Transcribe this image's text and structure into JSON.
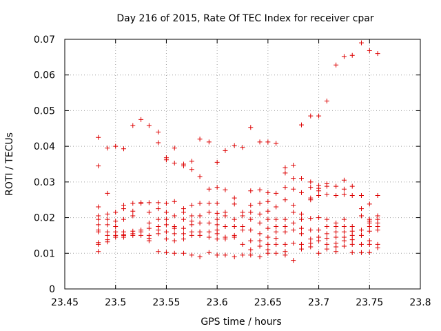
{
  "chart_data": {
    "type": "scatter",
    "title": "Day 216 of 2015, Rate Of TEC Index for receiver cpar",
    "xlabel": "GPS time / hours",
    "ylabel": "ROTI / TECUs",
    "xlim": [
      23.45,
      23.8
    ],
    "ylim": [
      0,
      0.07
    ],
    "xticks": [
      "23.45",
      "23.5",
      "23.55",
      "23.6",
      "23.65",
      "23.7",
      "23.75",
      "23.8"
    ],
    "yticks": [
      "0",
      "0.01",
      "0.02",
      "0.03",
      "0.04",
      "0.05",
      "0.06",
      "0.07"
    ],
    "grid": true,
    "marker": "+",
    "color": "#dd0000",
    "series": [
      {
        "name": "ROTI",
        "points": [
          [
            23.483,
            0.0425
          ],
          [
            23.483,
            0.0345
          ],
          [
            23.483,
            0.023
          ],
          [
            23.483,
            0.0205
          ],
          [
            23.483,
            0.0195
          ],
          [
            23.483,
            0.018
          ],
          [
            23.483,
            0.0165
          ],
          [
            23.483,
            0.016
          ],
          [
            23.483,
            0.013
          ],
          [
            23.483,
            0.0125
          ],
          [
            23.483,
            0.0105
          ],
          [
            23.492,
            0.0395
          ],
          [
            23.492,
            0.0268
          ],
          [
            23.492,
            0.021
          ],
          [
            23.492,
            0.0195
          ],
          [
            23.492,
            0.018
          ],
          [
            23.492,
            0.016
          ],
          [
            23.492,
            0.015
          ],
          [
            23.492,
            0.0138
          ],
          [
            23.492,
            0.0132
          ],
          [
            23.5,
            0.04
          ],
          [
            23.5,
            0.0215
          ],
          [
            23.5,
            0.019
          ],
          [
            23.5,
            0.0175
          ],
          [
            23.5,
            0.016
          ],
          [
            23.5,
            0.015
          ],
          [
            23.5,
            0.0145
          ],
          [
            23.508,
            0.0393
          ],
          [
            23.508,
            0.0235
          ],
          [
            23.508,
            0.0225
          ],
          [
            23.508,
            0.0195
          ],
          [
            23.508,
            0.016
          ],
          [
            23.508,
            0.0152
          ],
          [
            23.508,
            0.015
          ],
          [
            23.508,
            0.0145
          ],
          [
            23.517,
            0.0458
          ],
          [
            23.517,
            0.024
          ],
          [
            23.517,
            0.0218
          ],
          [
            23.517,
            0.0205
          ],
          [
            23.517,
            0.0162
          ],
          [
            23.517,
            0.0155
          ],
          [
            23.517,
            0.015
          ],
          [
            23.525,
            0.0475
          ],
          [
            23.525,
            0.0242
          ],
          [
            23.525,
            0.024
          ],
          [
            23.525,
            0.0165
          ],
          [
            23.525,
            0.016
          ],
          [
            23.525,
            0.015
          ],
          [
            23.533,
            0.0458
          ],
          [
            23.533,
            0.0242
          ],
          [
            23.533,
            0.0215
          ],
          [
            23.533,
            0.0185
          ],
          [
            23.533,
            0.017
          ],
          [
            23.533,
            0.015
          ],
          [
            23.533,
            0.0142
          ],
          [
            23.533,
            0.0135
          ],
          [
            23.542,
            0.044
          ],
          [
            23.542,
            0.041
          ],
          [
            23.542,
            0.0242
          ],
          [
            23.542,
            0.0225
          ],
          [
            23.542,
            0.0195
          ],
          [
            23.542,
            0.0175
          ],
          [
            23.542,
            0.0165
          ],
          [
            23.542,
            0.0155
          ],
          [
            23.542,
            0.0105
          ],
          [
            23.55,
            0.0368
          ],
          [
            23.55,
            0.0362
          ],
          [
            23.55,
            0.024
          ],
          [
            23.55,
            0.0215
          ],
          [
            23.55,
            0.0195
          ],
          [
            23.55,
            0.018
          ],
          [
            23.55,
            0.016
          ],
          [
            23.55,
            0.014
          ],
          [
            23.55,
            0.0102
          ],
          [
            23.558,
            0.0395
          ],
          [
            23.558,
            0.0353
          ],
          [
            23.558,
            0.0245
          ],
          [
            23.558,
            0.0205
          ],
          [
            23.558,
            0.0175
          ],
          [
            23.558,
            0.017
          ],
          [
            23.558,
            0.0155
          ],
          [
            23.558,
            0.0135
          ],
          [
            23.558,
            0.01
          ],
          [
            23.567,
            0.035
          ],
          [
            23.567,
            0.0345
          ],
          [
            23.567,
            0.0225
          ],
          [
            23.567,
            0.0215
          ],
          [
            23.567,
            0.0195
          ],
          [
            23.567,
            0.017
          ],
          [
            23.567,
            0.0155
          ],
          [
            23.567,
            0.014
          ],
          [
            23.567,
            0.01
          ],
          [
            23.575,
            0.0358
          ],
          [
            23.575,
            0.0335
          ],
          [
            23.575,
            0.0235
          ],
          [
            23.575,
            0.0205
          ],
          [
            23.575,
            0.019
          ],
          [
            23.575,
            0.018
          ],
          [
            23.575,
            0.016
          ],
          [
            23.575,
            0.015
          ],
          [
            23.575,
            0.0095
          ],
          [
            23.583,
            0.042
          ],
          [
            23.583,
            0.0315
          ],
          [
            23.583,
            0.024
          ],
          [
            23.583,
            0.0205
          ],
          [
            23.583,
            0.0185
          ],
          [
            23.583,
            0.016
          ],
          [
            23.583,
            0.015
          ],
          [
            23.583,
            0.009
          ],
          [
            23.592,
            0.0412
          ],
          [
            23.592,
            0.028
          ],
          [
            23.592,
            0.024
          ],
          [
            23.592,
            0.0215
          ],
          [
            23.592,
            0.0185
          ],
          [
            23.592,
            0.016
          ],
          [
            23.592,
            0.0145
          ],
          [
            23.592,
            0.0102
          ],
          [
            23.6,
            0.0355
          ],
          [
            23.6,
            0.0285
          ],
          [
            23.6,
            0.024
          ],
          [
            23.6,
            0.0212
          ],
          [
            23.6,
            0.0195
          ],
          [
            23.6,
            0.018
          ],
          [
            23.6,
            0.0165
          ],
          [
            23.6,
            0.0155
          ],
          [
            23.6,
            0.014
          ],
          [
            23.6,
            0.0095
          ],
          [
            23.608,
            0.0388
          ],
          [
            23.608,
            0.0278
          ],
          [
            23.608,
            0.0215
          ],
          [
            23.608,
            0.0205
          ],
          [
            23.608,
            0.0175
          ],
          [
            23.608,
            0.0145
          ],
          [
            23.608,
            0.014
          ],
          [
            23.608,
            0.0095
          ],
          [
            23.617,
            0.0402
          ],
          [
            23.617,
            0.0255
          ],
          [
            23.617,
            0.0238
          ],
          [
            23.617,
            0.0195
          ],
          [
            23.617,
            0.0175
          ],
          [
            23.617,
            0.015
          ],
          [
            23.617,
            0.0145
          ],
          [
            23.617,
            0.009
          ],
          [
            23.625,
            0.0397
          ],
          [
            23.625,
            0.0215
          ],
          [
            23.625,
            0.0205
          ],
          [
            23.625,
            0.0175
          ],
          [
            23.625,
            0.0165
          ],
          [
            23.625,
            0.0125
          ],
          [
            23.625,
            0.0095
          ],
          [
            23.633,
            0.0453
          ],
          [
            23.633,
            0.0275
          ],
          [
            23.633,
            0.0235
          ],
          [
            23.633,
            0.0215
          ],
          [
            23.633,
            0.0195
          ],
          [
            23.633,
            0.0165
          ],
          [
            23.633,
            0.0135
          ],
          [
            23.633,
            0.011
          ],
          [
            23.633,
            0.0095
          ],
          [
            23.642,
            0.0412
          ],
          [
            23.642,
            0.0278
          ],
          [
            23.642,
            0.024
          ],
          [
            23.642,
            0.021
          ],
          [
            23.642,
            0.0185
          ],
          [
            23.642,
            0.0155
          ],
          [
            23.642,
            0.0135
          ],
          [
            23.642,
            0.012
          ],
          [
            23.642,
            0.009
          ],
          [
            23.65,
            0.0412
          ],
          [
            23.65,
            0.027
          ],
          [
            23.65,
            0.0245
          ],
          [
            23.65,
            0.0218
          ],
          [
            23.65,
            0.0195
          ],
          [
            23.65,
            0.017
          ],
          [
            23.65,
            0.0145
          ],
          [
            23.65,
            0.0125
          ],
          [
            23.65,
            0.011
          ],
          [
            23.65,
            0.01
          ],
          [
            23.658,
            0.0408
          ],
          [
            23.658,
            0.0268
          ],
          [
            23.658,
            0.023
          ],
          [
            23.658,
            0.0195
          ],
          [
            23.658,
            0.0175
          ],
          [
            23.658,
            0.016
          ],
          [
            23.658,
            0.0142
          ],
          [
            23.658,
            0.0125
          ],
          [
            23.658,
            0.01
          ],
          [
            23.667,
            0.034
          ],
          [
            23.667,
            0.0325
          ],
          [
            23.667,
            0.0285
          ],
          [
            23.667,
            0.025
          ],
          [
            23.667,
            0.0195
          ],
          [
            23.667,
            0.0175
          ],
          [
            23.667,
            0.016
          ],
          [
            23.667,
            0.0125
          ],
          [
            23.667,
            0.0105
          ],
          [
            23.667,
            0.0095
          ],
          [
            23.675,
            0.0347
          ],
          [
            23.675,
            0.031
          ],
          [
            23.675,
            0.028
          ],
          [
            23.675,
            0.0235
          ],
          [
            23.675,
            0.0215
          ],
          [
            23.675,
            0.0185
          ],
          [
            23.675,
            0.0165
          ],
          [
            23.675,
            0.0128
          ],
          [
            23.675,
            0.008
          ],
          [
            23.683,
            0.046
          ],
          [
            23.683,
            0.031
          ],
          [
            23.683,
            0.027
          ],
          [
            23.683,
            0.021
          ],
          [
            23.683,
            0.0195
          ],
          [
            23.683,
            0.017
          ],
          [
            23.683,
            0.0155
          ],
          [
            23.683,
            0.0125
          ],
          [
            23.683,
            0.0112
          ],
          [
            23.692,
            0.0485
          ],
          [
            23.692,
            0.03
          ],
          [
            23.692,
            0.0285
          ],
          [
            23.692,
            0.0255
          ],
          [
            23.692,
            0.025
          ],
          [
            23.692,
            0.0198
          ],
          [
            23.692,
            0.0165
          ],
          [
            23.692,
            0.014
          ],
          [
            23.692,
            0.0128
          ],
          [
            23.692,
            0.0118
          ],
          [
            23.7,
            0.0485
          ],
          [
            23.7,
            0.029
          ],
          [
            23.7,
            0.0282
          ],
          [
            23.7,
            0.0275
          ],
          [
            23.7,
            0.0262
          ],
          [
            23.7,
            0.02
          ],
          [
            23.7,
            0.0165
          ],
          [
            23.7,
            0.0145
          ],
          [
            23.7,
            0.0135
          ],
          [
            23.7,
            0.01
          ],
          [
            23.708,
            0.0527
          ],
          [
            23.708,
            0.0295
          ],
          [
            23.708,
            0.0288
          ],
          [
            23.708,
            0.0265
          ],
          [
            23.708,
            0.0195
          ],
          [
            23.708,
            0.0175
          ],
          [
            23.708,
            0.0155
          ],
          [
            23.708,
            0.0142
          ],
          [
            23.708,
            0.0125
          ],
          [
            23.708,
            0.0112
          ],
          [
            23.717,
            0.0628
          ],
          [
            23.717,
            0.0288
          ],
          [
            23.717,
            0.0262
          ],
          [
            23.717,
            0.0185
          ],
          [
            23.717,
            0.0175
          ],
          [
            23.717,
            0.016
          ],
          [
            23.717,
            0.0145
          ],
          [
            23.717,
            0.0128
          ],
          [
            23.717,
            0.0118
          ],
          [
            23.717,
            0.0105
          ],
          [
            23.725,
            0.0652
          ],
          [
            23.725,
            0.0305
          ],
          [
            23.725,
            0.028
          ],
          [
            23.725,
            0.0265
          ],
          [
            23.725,
            0.0195
          ],
          [
            23.725,
            0.0175
          ],
          [
            23.725,
            0.016
          ],
          [
            23.725,
            0.0145
          ],
          [
            23.725,
            0.0135
          ],
          [
            23.725,
            0.012
          ],
          [
            23.733,
            0.0655
          ],
          [
            23.733,
            0.0288
          ],
          [
            23.733,
            0.0262
          ],
          [
            23.733,
            0.0175
          ],
          [
            23.733,
            0.0162
          ],
          [
            23.733,
            0.015
          ],
          [
            23.733,
            0.0138
          ],
          [
            23.733,
            0.0125
          ],
          [
            23.733,
            0.0102
          ],
          [
            23.742,
            0.069
          ],
          [
            23.742,
            0.0262
          ],
          [
            23.742,
            0.0225
          ],
          [
            23.742,
            0.0205
          ],
          [
            23.742,
            0.0165
          ],
          [
            23.742,
            0.015
          ],
          [
            23.742,
            0.0125
          ],
          [
            23.742,
            0.0102
          ],
          [
            23.75,
            0.0668
          ],
          [
            23.75,
            0.0238
          ],
          [
            23.75,
            0.0195
          ],
          [
            23.75,
            0.019
          ],
          [
            23.75,
            0.0185
          ],
          [
            23.75,
            0.0175
          ],
          [
            23.75,
            0.0162
          ],
          [
            23.75,
            0.0135
          ],
          [
            23.75,
            0.0125
          ],
          [
            23.75,
            0.0102
          ],
          [
            23.758,
            0.066
          ],
          [
            23.758,
            0.0262
          ],
          [
            23.758,
            0.0205
          ],
          [
            23.758,
            0.0195
          ],
          [
            23.758,
            0.0185
          ],
          [
            23.758,
            0.0175
          ],
          [
            23.758,
            0.0165
          ],
          [
            23.758,
            0.0125
          ],
          [
            23.758,
            0.0115
          ]
        ]
      }
    ]
  }
}
